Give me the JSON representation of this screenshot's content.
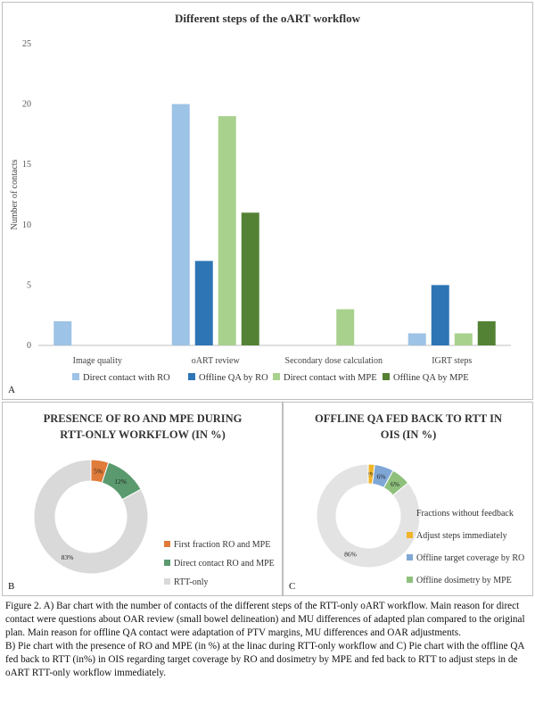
{
  "chart_data": [
    {
      "type": "bar",
      "panel": "A",
      "title": "Different steps of the oART workflow",
      "xlabel": "",
      "ylabel": "Number of contacts",
      "ylim": [
        0,
        25
      ],
      "yticks": [
        0,
        5,
        10,
        15,
        20,
        25
      ],
      "grid": false,
      "legend_position": "bottom",
      "categories": [
        "Image quality",
        "oART review",
        "Secondary dose calculation",
        "IGRT steps"
      ],
      "series": [
        {
          "name": "Direct contact with RO",
          "color": "#9dc3e6",
          "values": [
            2,
            20,
            0,
            1
          ]
        },
        {
          "name": "Offline QA by RO",
          "color": "#2e75b6",
          "values": [
            0,
            7,
            0,
            5
          ]
        },
        {
          "name": "Direct contact with MPE",
          "color": "#a9d18e",
          "values": [
            0,
            19,
            3,
            1
          ]
        },
        {
          "name": "Offline QA by MPE",
          "color": "#548235",
          "values": [
            0,
            11,
            0,
            2
          ]
        }
      ]
    },
    {
      "type": "pie",
      "panel": "B",
      "title_lines": [
        "PRESENCE OF RO AND MPE DURING",
        "RTT-ONLY WORKFLOW (IN %)"
      ],
      "legend_position": "right",
      "slices": [
        {
          "label": "First fraction RO and MPE",
          "value": 5,
          "display": "5%",
          "color": "#e07b39"
        },
        {
          "label": "Direct contact RO and MPE",
          "value": 12,
          "display": "12%",
          "color": "#5a9a6e"
        },
        {
          "label": "RTT-only",
          "value": 83,
          "display": "83%",
          "color": "#d9d9d9"
        }
      ]
    },
    {
      "type": "pie",
      "panel": "C",
      "title_lines": [
        "OFFLINE QA FED BACK TO RTT IN",
        "OIS (IN %)"
      ],
      "legend_position": "right",
      "slices": [
        {
          "label": "Adjust steps immediately",
          "value": 2,
          "display": "2%",
          "color": "#f0b429"
        },
        {
          "label": "Offline target coverage by RO",
          "value": 6,
          "display": "6%",
          "color": "#7fa7d6"
        },
        {
          "label": "Offline dosimetry by MPE",
          "value": 6,
          "display": "6%",
          "color": "#8ec07c"
        },
        {
          "label": "Fractions without feedback",
          "value": 86,
          "display": "86%",
          "color": "#e3e3e3"
        }
      ]
    }
  ],
  "panels": {
    "a": "A",
    "b": "B",
    "c": "C"
  },
  "caption": [
    "Figure 2. A) Bar chart with the number of contacts of the different steps of the RTT-only oART workflow. Main reason for direct contact were questions about OAR review (small bowel delineation) and MU differences of adapted plan compared to the original plan. Main reason for offline QA contact were adaptation of PTV margins, MU differences and OAR adjustments.",
    "B) Pie chart with the presence of RO and MPE (in %) at the linac during RTT-only workflow and C) Pie chart with the offline QA fed back to RTT (in%) in OIS regarding target coverage by RO and dosimetry by MPE and fed back to RTT to adjust steps in de oART RTT-only workflow immediately."
  ]
}
